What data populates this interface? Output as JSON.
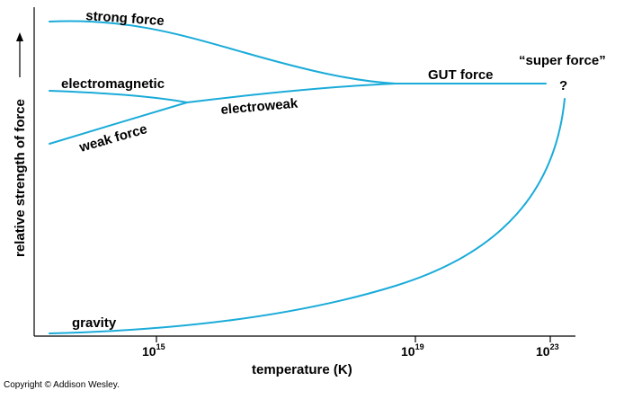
{
  "figure": {
    "curve_color": "#1aabd9",
    "axis_color": "#000000",
    "x_axis": {
      "title": "temperature (K)",
      "ticks": [
        {
          "base": "10",
          "exp": "15"
        },
        {
          "base": "10",
          "exp": "19"
        },
        {
          "base": "10",
          "exp": "23"
        }
      ]
    },
    "y_axis": {
      "title": "relative strength of force"
    },
    "curves": {
      "strong": "strong force",
      "electromagnetic": "electromagnetic",
      "weak": "weak force",
      "electroweak": "electroweak",
      "gut": "GUT force",
      "super": "“super force”",
      "unknown": "?",
      "gravity": "gravity"
    },
    "copyright": "Copyright © Addison Wesley."
  }
}
